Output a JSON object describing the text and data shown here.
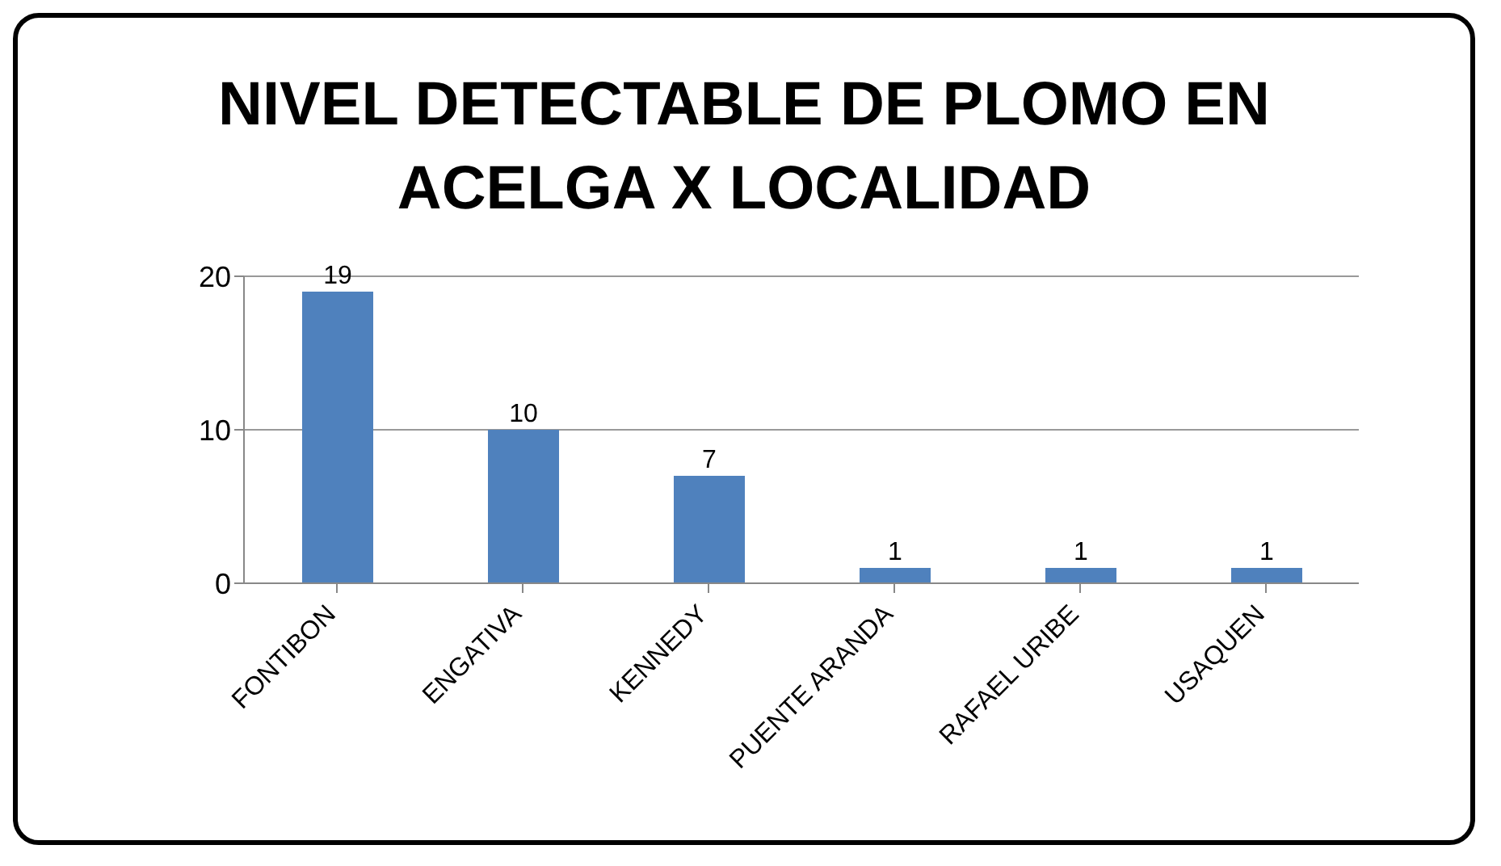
{
  "chart_data": {
    "type": "bar",
    "title": "NIVEL DETECTABLE DE PLOMO EN ACELGA X LOCALIDAD",
    "categories": [
      "FONTIBON",
      "ENGATIVA",
      "KENNEDY",
      "PUENTE ARANDA",
      "RAFAEL URIBE",
      "USAQUEN"
    ],
    "values": [
      19,
      10,
      7,
      1,
      1,
      1
    ],
    "color": "#4f81bd",
    "ylim": [
      0,
      20
    ],
    "yticks": [
      0,
      10,
      20
    ],
    "grid": "y",
    "data_labels": true
  }
}
